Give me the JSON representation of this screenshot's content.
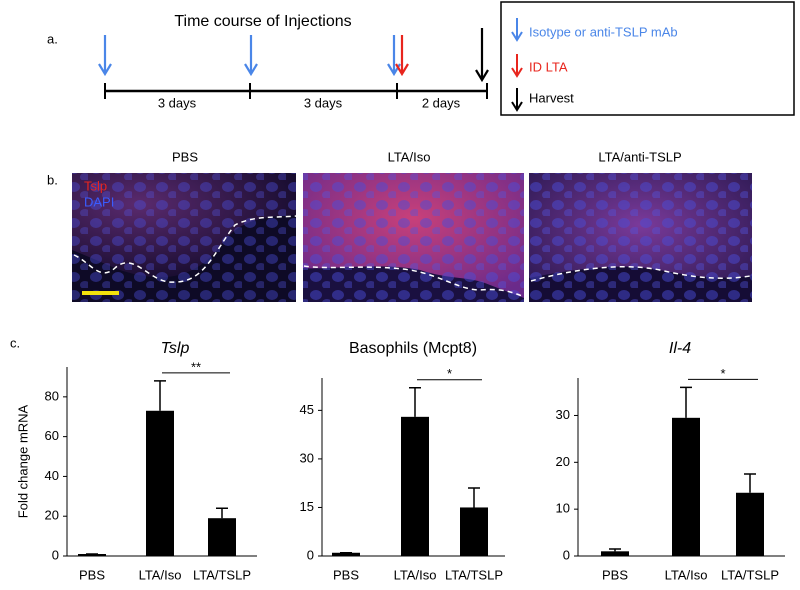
{
  "panel_labels": [
    "a.",
    "b.",
    "c."
  ],
  "panel_a": {
    "title": "Time course of Injections",
    "intervals": [
      "3 days",
      "3 days",
      "2 days"
    ],
    "legend": [
      {
        "label": "Isotype or anti-TSLP mAb",
        "color": "#4a86e8"
      },
      {
        "label": "ID LTA",
        "color": "#e8251d"
      },
      {
        "label": "Harvest",
        "color": "#000000"
      }
    ]
  },
  "panel_b": {
    "images": [
      "PBS",
      "LTA/Iso",
      "LTA/anti-TSLP"
    ],
    "stains": [
      {
        "label": "Tslp",
        "color": "#e8251d"
      },
      {
        "label": "DAPI",
        "color": "#3a5cff"
      }
    ]
  },
  "chart_data": [
    {
      "type": "bar",
      "title": "Tslp",
      "ylabel": "Fold change mRNA",
      "categories": [
        "PBS",
        "LTA/Iso",
        "LTA/TSLP"
      ],
      "values": [
        1,
        73,
        19
      ],
      "errors": [
        0,
        15,
        5
      ],
      "color": "#000000",
      "ylim": [
        0,
        95
      ],
      "yticks": [
        0,
        20,
        40,
        60,
        80
      ],
      "annotation": "**"
    },
    {
      "type": "bar",
      "title": "Basophils (Mcpt8)",
      "categories": [
        "PBS",
        "LTA/Iso",
        "LTA/TSLP"
      ],
      "values": [
        1,
        43,
        15
      ],
      "errors": [
        0,
        9,
        6
      ],
      "color": "#000000",
      "ylim": [
        0,
        55
      ],
      "yticks": [
        0,
        15,
        30,
        45
      ],
      "annotation": "*"
    },
    {
      "type": "bar",
      "title": "Il-4",
      "categories": [
        "PBS",
        "LTA/Iso",
        "LTA/TSLP"
      ],
      "values": [
        1,
        29.5,
        13.5
      ],
      "errors": [
        0.5,
        6.5,
        4
      ],
      "color": "#000000",
      "ylim": [
        0,
        38
      ],
      "yticks": [
        0,
        10,
        20,
        30
      ],
      "annotation": "*"
    }
  ]
}
